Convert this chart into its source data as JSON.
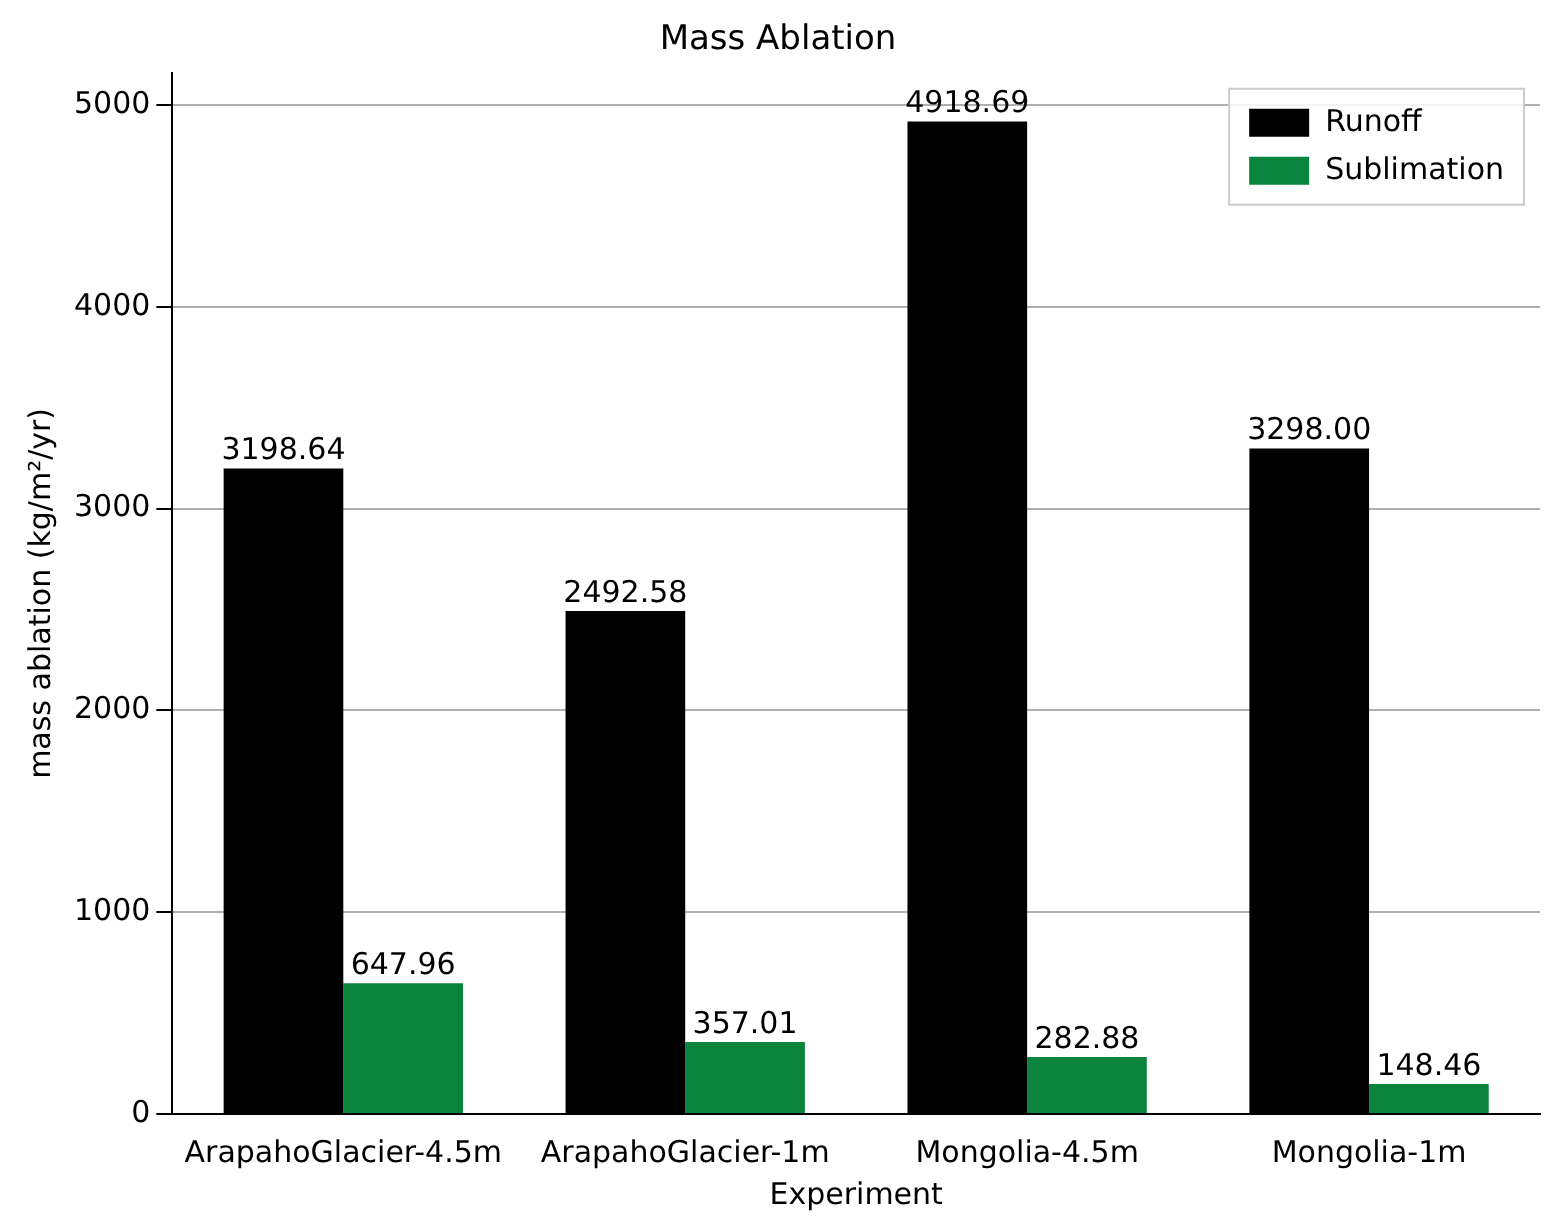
{
  "chart_data": {
    "type": "bar",
    "title": "Mass Ablation",
    "xlabel": "Experiment",
    "ylabel": "mass ablation (kg/m²/yr)",
    "categories": [
      "ArapahoGlacier-4.5m",
      "ArapahoGlacier-1m",
      "Mongolia-4.5m",
      "Mongolia-1m"
    ],
    "series": [
      {
        "name": "Runoff",
        "color": "#000000",
        "values": [
          3198.64,
          2492.58,
          4918.69,
          3298.0
        ],
        "value_labels": [
          "3198.64",
          "2492.58",
          "4918.69",
          "3298.00"
        ]
      },
      {
        "name": "Sublimation",
        "color": "#0a843c",
        "values": [
          647.96,
          357.01,
          282.88,
          148.46
        ],
        "value_labels": [
          "647.96",
          "357.01",
          "282.88",
          "148.46"
        ]
      }
    ],
    "ylim": [
      0,
      5160
    ],
    "yticks": [
      0,
      1000,
      2000,
      3000,
      4000,
      5000
    ],
    "grid": "y",
    "legend": "top right"
  }
}
